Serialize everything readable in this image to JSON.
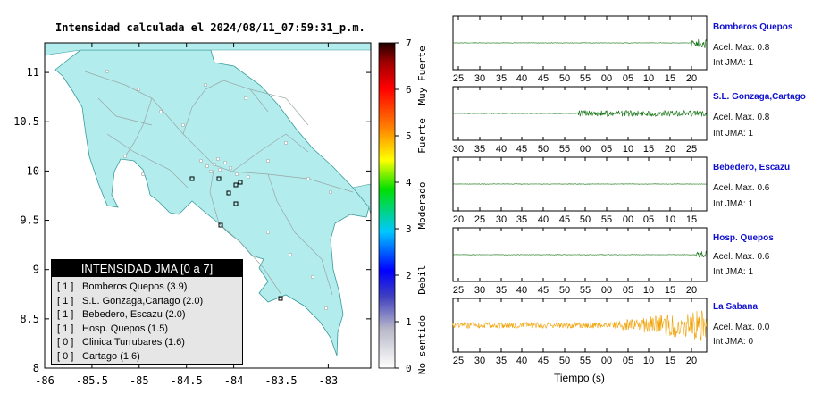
{
  "map": {
    "title": "Intensidad calculada el 2024/08/11_07:59:31_p.m.",
    "x_ticks": [
      "-86",
      "-85.5",
      "-85",
      "-84.5",
      "-84",
      "-83.5",
      "-83"
    ],
    "y_ticks": [
      "11",
      "10.5",
      "10",
      "9.5",
      "9",
      "8.5",
      "8"
    ],
    "land_color": "#b2ecec"
  },
  "colorbar": {
    "ticks": [
      "0",
      "1",
      "2",
      "3",
      "4",
      "5",
      "6",
      "7"
    ],
    "labels": [
      "No sentido",
      "Debil",
      "Moderado",
      "Fuerte",
      "Muy Fuerte"
    ]
  },
  "legend": {
    "header": "INTENSIDAD JMA [0 a 7]",
    "rows": [
      {
        "level": "[ 1 ]",
        "text": "Bomberos Quepos (3.9)"
      },
      {
        "level": "[ 1 ]",
        "text": "S.L. Gonzaga,Cartago (2.0)"
      },
      {
        "level": "[ 1 ]",
        "text": "Bebedero, Escazu (2.0)"
      },
      {
        "level": "[ 1 ]",
        "text": "Hosp. Quepos (1.5)"
      },
      {
        "level": "[ 0 ]",
        "text": "Clinica Turrubares (1.6)"
      },
      {
        "level": "[ 0 ]",
        "text": "Cartago (1.6)"
      }
    ]
  },
  "chart_data": {
    "type": "line",
    "xlabel": "Tiempo (s)",
    "traces": [
      {
        "name": "Bomberos Quepos",
        "acel": "Acel. Max. 0.8",
        "jma": "Int JMA: 1",
        "color": "#0a6e0a",
        "ticks": [
          "25",
          "30",
          "35",
          "40",
          "45",
          "50",
          "55",
          "00",
          "05",
          "10",
          "15",
          "20"
        ],
        "onset_second": 55,
        "peak_second": 62
      },
      {
        "name": "S.L. Gonzaga,Cartago",
        "acel": "Acel. Max. 0.8",
        "jma": "Int JMA: 1",
        "color": "#0a6e0a",
        "ticks": [
          "30",
          "35",
          "40",
          "45",
          "50",
          "55",
          "00",
          "05",
          "10",
          "15",
          "20",
          "25"
        ],
        "onset_second": 28,
        "peak_second": 78
      },
      {
        "name": "Bebedero, Escazu",
        "acel": "Acel. Max. 0.6",
        "jma": "Int JMA: 1",
        "color": "#0a6e0a",
        "ticks": [
          "20",
          "25",
          "30",
          "35",
          "40",
          "45",
          "50",
          "55",
          "00",
          "05",
          "10",
          "15"
        ],
        "onset_second": 61,
        "peak_second": 74
      },
      {
        "name": "Hosp. Quepos",
        "acel": "Acel. Max. 0.6",
        "jma": "Int JMA: 1",
        "color": "#0a6e0a",
        "ticks": [
          "25",
          "30",
          "35",
          "40",
          "45",
          "50",
          "55",
          "00",
          "05",
          "10",
          "15",
          "20"
        ],
        "onset_second": 56,
        "peak_second": 64
      },
      {
        "name": "La Sabana",
        "acel": "Acel. Max. 0.0",
        "jma": "Int JMA: 0",
        "color": "#f0a000",
        "ticks": [
          "25",
          "30",
          "35",
          "40",
          "45",
          "50",
          "55",
          "00",
          "05",
          "10",
          "15",
          "20"
        ],
        "onset_second": 0,
        "peak_second": 80
      }
    ]
  }
}
